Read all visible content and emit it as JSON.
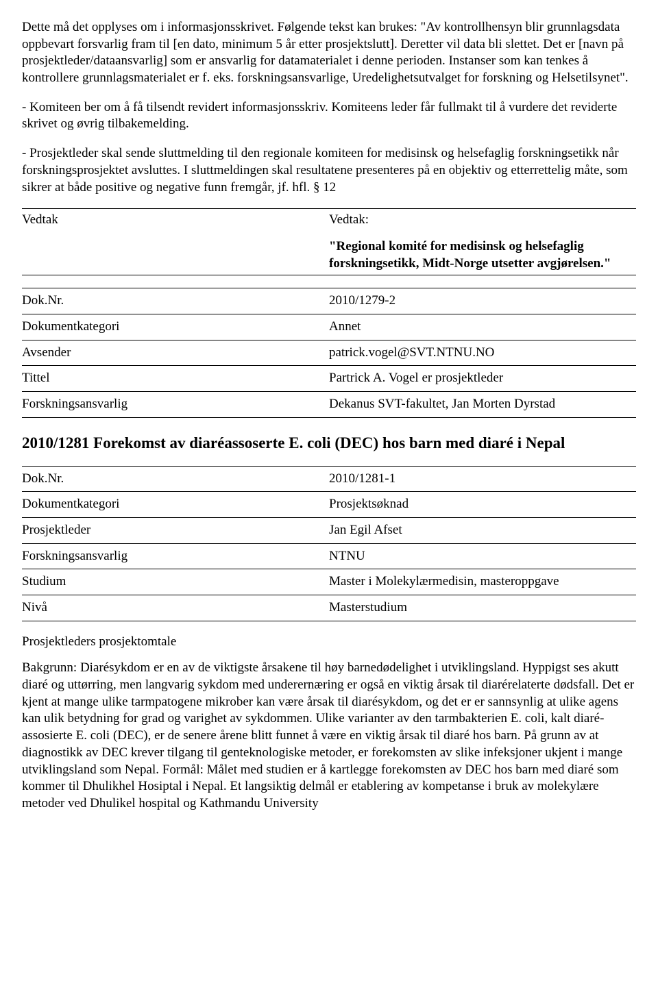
{
  "para1": "Dette må det opplyses om i informasjonsskrivet. Følgende tekst kan brukes: \"Av kontrollhensyn blir grunnlagsdata oppbevart forsvarlig fram til [en dato, minimum 5 år etter prosjektslutt]. Deretter vil data bli slettet. Det er [navn på prosjektleder/dataansvarlig] som er ansvarlig for datamaterialet i denne perioden. Instanser som kan tenkes å kontrollere grunnlagsmaterialet er f. eks. forskningsansvarlige, Uredelighetsutvalget for forskning og Helsetilsynet\".",
  "para2": "- Komiteen ber om å få tilsendt revidert informasjonsskriv. Komiteens leder får fullmakt til å vurdere det reviderte skrivet og øvrig tilbakemelding.",
  "para3": "- Prosjektleder skal sende sluttmelding til den regionale komiteen for medisinsk og helsefaglig forskningsetikk når forskningsprosjektet avsluttes. I sluttmeldingen skal resultatene presenteres på en objektiv og etterrettelig måte, som sikrer at både positive og negative funn fremgår, jf. hfl. § 12",
  "vedtakLeft": "Vedtak",
  "vedtakRightLabel": "Vedtak:",
  "vedtakQuote": "\"Regional komité for medisinsk og helsefaglig forskningsetikk, Midt-Norge utsetter avgjørelsen.\"",
  "meta1": {
    "rows": [
      {
        "key": "Dok.Nr.",
        "val": "2010/1279-2"
      },
      {
        "key": "Dokumentkategori",
        "val": "Annet"
      },
      {
        "key": "Avsender",
        "val": "patrick.vogel@SVT.NTNU.NO"
      },
      {
        "key": "Tittel",
        "val": "Partrick A. Vogel er prosjektleder"
      },
      {
        "key": "Forskningsansvarlig",
        "val": "Dekanus SVT-fakultet, Jan Morten Dyrstad"
      }
    ]
  },
  "sectionHeading": "2010/1281 Forekomst av diaréassoserte E. coli (DEC) hos barn med diaré i Nepal",
  "meta2": {
    "rows": [
      {
        "key": "Dok.Nr.",
        "val": "2010/1281-1"
      },
      {
        "key": "Dokumentkategori",
        "val": "Prosjektsøknad"
      },
      {
        "key": "Prosjektleder",
        "val": "Jan Egil Afset"
      },
      {
        "key": "Forskningsansvarlig",
        "val": "NTNU"
      },
      {
        "key": "Studium",
        "val": "Master i Molekylærmedisin, masteroppgave"
      },
      {
        "key": "Nivå",
        "val": "Masterstudium"
      }
    ]
  },
  "subheading": "Prosjektleders prosjektomtale",
  "para4": "Bakgrunn: Diarésykdom er en av de viktigste årsakene til høy barnedødelighet i utviklingsland. Hyppigst ses akutt diaré og uttørring, men langvarig sykdom med underernæring er også en viktig årsak til diarérelaterte dødsfall. Det er kjent at mange ulike tarmpatogene mikrober kan være årsak til diarésykdom, og det er er sannsynlig at ulike agens kan ulik betydning for grad og varighet av sykdommen. Ulike varianter av den tarmbakterien E. coli, kalt diaré-assosierte E. coli (DEC), er de senere årene blitt funnet å være en viktig årsak til diaré hos barn. På grunn av at diagnostikk av DEC krever tilgang til genteknologiske metoder, er forekomsten av slike infeksjoner ukjent i mange utviklingsland som Nepal. Formål: Målet med studien er å kartlegge forekomsten av DEC hos barn med diaré som kommer til Dhulikhel Hosiptal i Nepal. Et langsiktig delmål er etablering av kompetanse i bruk av molekylære metoder ved Dhulikel hospital og Kathmandu University"
}
